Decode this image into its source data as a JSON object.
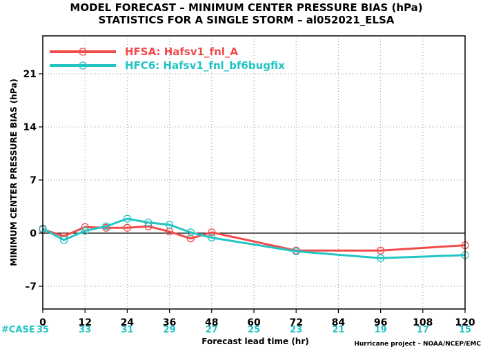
{
  "chart_data": {
    "type": "line",
    "title": "MODEL FORECAST – MINIMUM CENTER PRESSURE BIAS (hPa)",
    "subtitle": "STATISTICS FOR A SINGLE STORM – al052021_ELSA",
    "xlabel": "Forecast lead time (hr)",
    "ylabel": "MINIMUM CENTER PRESSURE BIAS (hPa)",
    "xlim": [
      0,
      120
    ],
    "ylim": [
      -10,
      26
    ],
    "xticks": [
      0,
      12,
      24,
      36,
      48,
      60,
      72,
      84,
      96,
      108,
      120
    ],
    "yticks": [
      -7,
      0,
      7,
      14,
      21
    ],
    "grid": true,
    "legend_position": "top-left",
    "series": [
      {
        "name": "HFSA: Hafsv1_fnl_A",
        "color": "#f04a4a",
        "x": [
          0,
          6,
          12,
          18,
          24,
          30,
          36,
          42,
          48,
          72,
          96,
          120
        ],
        "y": [
          0.5,
          -0.4,
          0.8,
          0.7,
          0.7,
          0.9,
          0.2,
          -0.7,
          0.1,
          -2.3,
          -2.3,
          -1.6
        ]
      },
      {
        "name": "HFC6: Hafsv1_fnl_bf6bugfix",
        "color": "#22c4c4",
        "x": [
          0,
          6,
          12,
          18,
          24,
          30,
          36,
          42,
          48,
          72,
          96,
          120
        ],
        "y": [
          0.6,
          -0.9,
          0.3,
          0.9,
          1.9,
          1.4,
          1.1,
          0.1,
          -0.6,
          -2.4,
          -3.3,
          -2.9
        ]
      }
    ],
    "case_label": "#CASE",
    "case_counts": [
      "35",
      "33",
      "31",
      "29",
      "27",
      "25",
      "23",
      "21",
      "19",
      "17",
      "15"
    ],
    "case_color": "#22c4c4",
    "credit": "Hurricane project – NOAA/NCEP/EMC"
  }
}
